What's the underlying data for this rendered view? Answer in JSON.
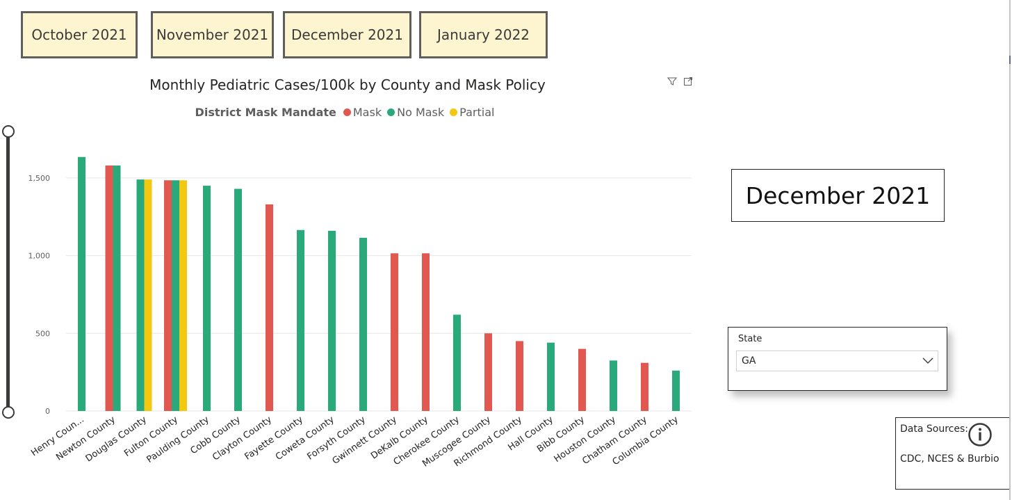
{
  "tabs": [
    "October 2021",
    "November 2021",
    "December 2021",
    "January 2022"
  ],
  "selected_month": "December 2021",
  "slicer": {
    "label": "State",
    "value": "GA"
  },
  "sources": {
    "label": "Data Sources:",
    "text": "CDC, NCES & Burbio"
  },
  "icons": {
    "filter": "filter-icon",
    "focus": "focus-mode-icon",
    "info": "info-icon",
    "dropdown": "chevron-down-icon"
  },
  "chart_data": {
    "type": "bar",
    "title": "Monthly Pediatric Cases/100k by County and Mask Policy",
    "legend_title": "District Mask Mandate",
    "legend_position": "top",
    "grid": true,
    "xlabel": "",
    "ylabel": "",
    "ylim": [
      0,
      1650
    ],
    "yticks": [
      0,
      500,
      1000,
      1500
    ],
    "ytick_labels": [
      "0",
      "500",
      "1,000",
      "1,500"
    ],
    "categories": [
      "Henry Coun...",
      "Newton County",
      "Douglas County",
      "Fulton County",
      "Paulding County",
      "Cobb County",
      "Clayton County",
      "Fayette County",
      "Coweta County",
      "Forsyth County",
      "Gwinnett County",
      "DeKalb County",
      "Cherokee County",
      "Muscogee County",
      "Richmond County",
      "Hall County",
      "Bibb County",
      "Houston County",
      "Chatham County",
      "Columbia County"
    ],
    "series": [
      {
        "name": "Mask",
        "color": "#e0584f",
        "values": [
          null,
          1580,
          null,
          1485,
          null,
          null,
          1330,
          null,
          null,
          null,
          1015,
          1015,
          null,
          500,
          450,
          null,
          400,
          null,
          310,
          null
        ]
      },
      {
        "name": "No Mask",
        "color": "#2aaa7a",
        "values": [
          1635,
          1580,
          1490,
          1485,
          1450,
          1430,
          null,
          1165,
          1160,
          1115,
          null,
          null,
          620,
          null,
          null,
          440,
          null,
          325,
          null,
          260
        ]
      },
      {
        "name": "Partial",
        "color": "#f2c811",
        "values": [
          null,
          null,
          1490,
          1485,
          null,
          null,
          null,
          null,
          null,
          null,
          null,
          null,
          null,
          null,
          null,
          null,
          null,
          null,
          null,
          null
        ]
      }
    ]
  }
}
